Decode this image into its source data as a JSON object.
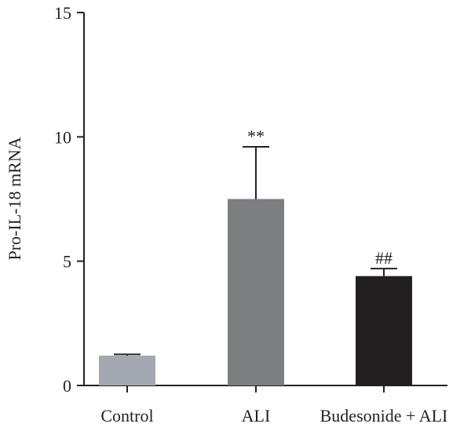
{
  "chart_data": {
    "type": "bar",
    "categories": [
      "Control",
      "ALI",
      "Budesonide + ALI"
    ],
    "values": [
      1.2,
      7.5,
      4.4
    ],
    "errors": [
      0.05,
      2.1,
      0.3
    ],
    "annotations": [
      "",
      "**",
      "##"
    ],
    "colors": [
      "#a3a8b3",
      "#7d7e82",
      "#231f20"
    ],
    "ylabel": "Pro-IL-18 mRNA",
    "ylim": [
      0,
      15
    ],
    "yticks": [
      0,
      5,
      10,
      15
    ],
    "grid": false
  }
}
